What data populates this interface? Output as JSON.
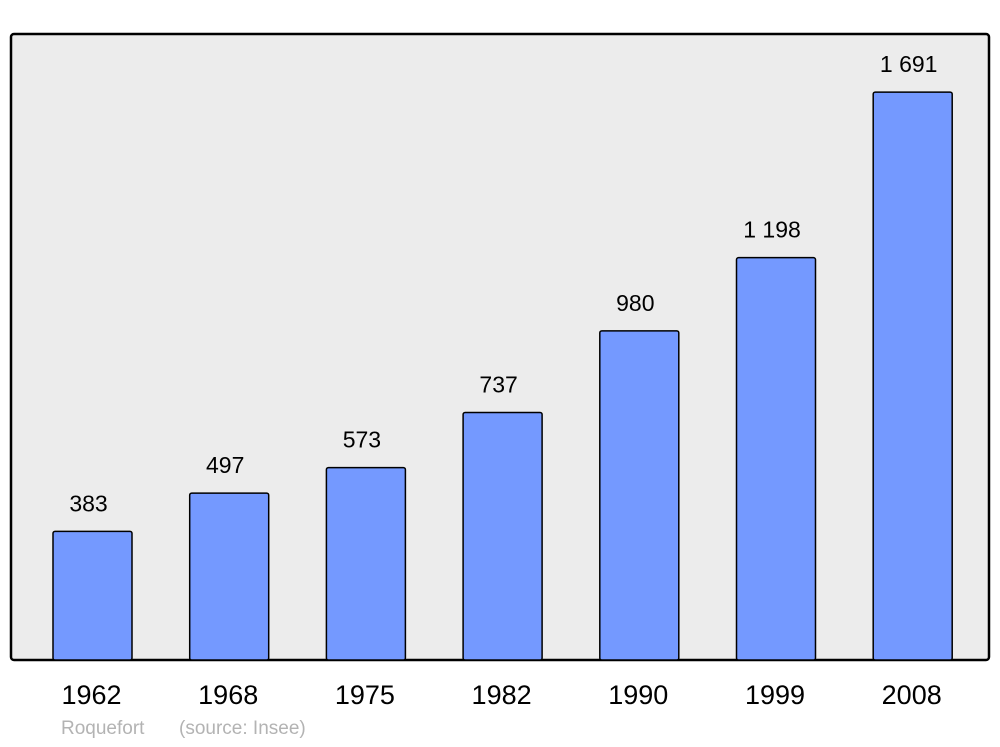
{
  "chart_data": {
    "type": "bar",
    "categories": [
      "1962",
      "1968",
      "1975",
      "1982",
      "1990",
      "1999",
      "2008"
    ],
    "values": [
      383,
      497,
      573,
      737,
      980,
      1198,
      1691
    ],
    "data_labels": [
      "383",
      "497",
      "573",
      "737",
      "980",
      "1 198",
      "1 691"
    ],
    "title": "",
    "xlabel": "",
    "ylabel": "",
    "ylim": [
      0,
      1864
    ],
    "grid": false,
    "bar_color": "#7499ff",
    "background_color": "#ececec"
  },
  "footer": {
    "place": "Roquefort",
    "source": "(source: Insee)"
  }
}
